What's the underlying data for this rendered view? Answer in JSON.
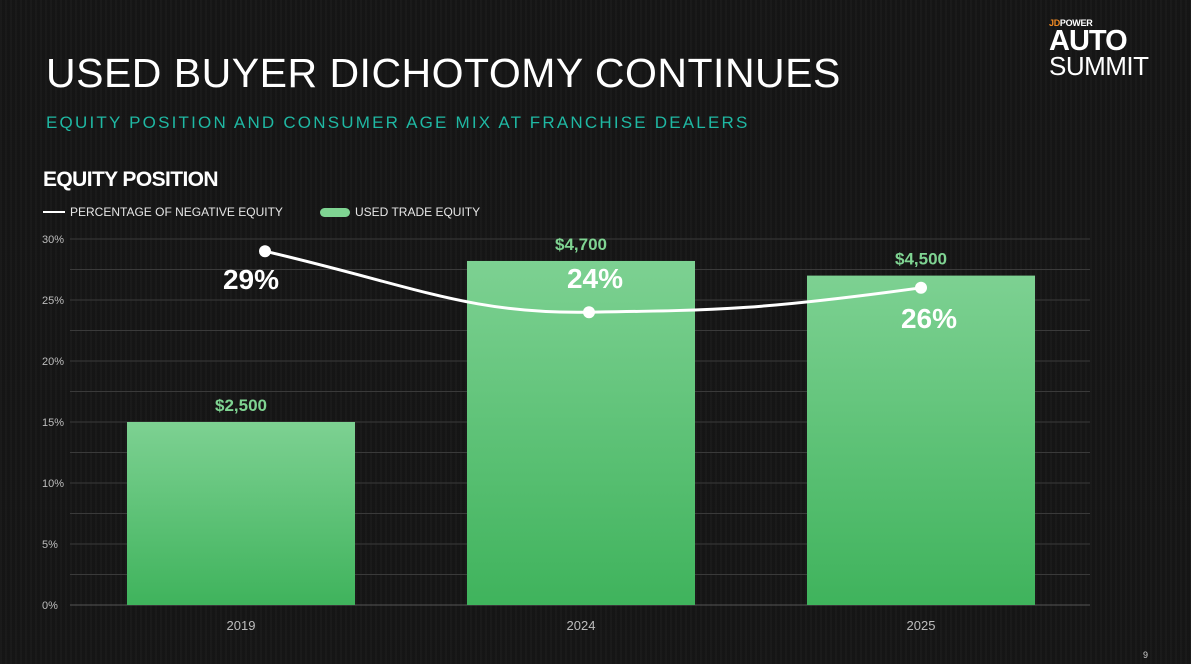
{
  "header": {
    "title": "USED BUYER DICHOTOMY CONTINUES",
    "subtitle": "EQUITY POSITION AND CONSUMER AGE MIX AT FRANCHISE DEALERS"
  },
  "logo": {
    "brand_prefix": "JD",
    "brand_suffix": "POWER",
    "line1": "AUTO",
    "line2": "SUMMIT",
    "brand_color": "#f08a24"
  },
  "section": {
    "title": "EQUITY POSITION"
  },
  "page_number": "9",
  "chart_data": {
    "type": "bar",
    "categories": [
      "2019",
      "2024",
      "2025"
    ],
    "series": [
      {
        "name": "USED TRADE EQUITY",
        "type": "bar",
        "values": [
          2500,
          4700,
          4500
        ],
        "labels": [
          "$2,500",
          "$4,700",
          "$4,500"
        ],
        "color": "#5cc477"
      },
      {
        "name": "PERCENTAGE OF NEGATIVE EQUITY",
        "type": "line",
        "values": [
          29,
          24,
          26
        ],
        "labels": [
          "29%",
          "24%",
          "26%"
        ],
        "color": "#ffffff"
      }
    ],
    "yaxis": {
      "ticks": [
        "0%",
        "5%",
        "10%",
        "15%",
        "20%",
        "25%",
        "30%"
      ],
      "range": [
        0,
        30
      ]
    },
    "grid": true,
    "legend_position": "top-left",
    "colors": {
      "bar_label": "#7fd492",
      "grid": "#3a3a3a",
      "axis_text": "#bdbdbd"
    }
  }
}
